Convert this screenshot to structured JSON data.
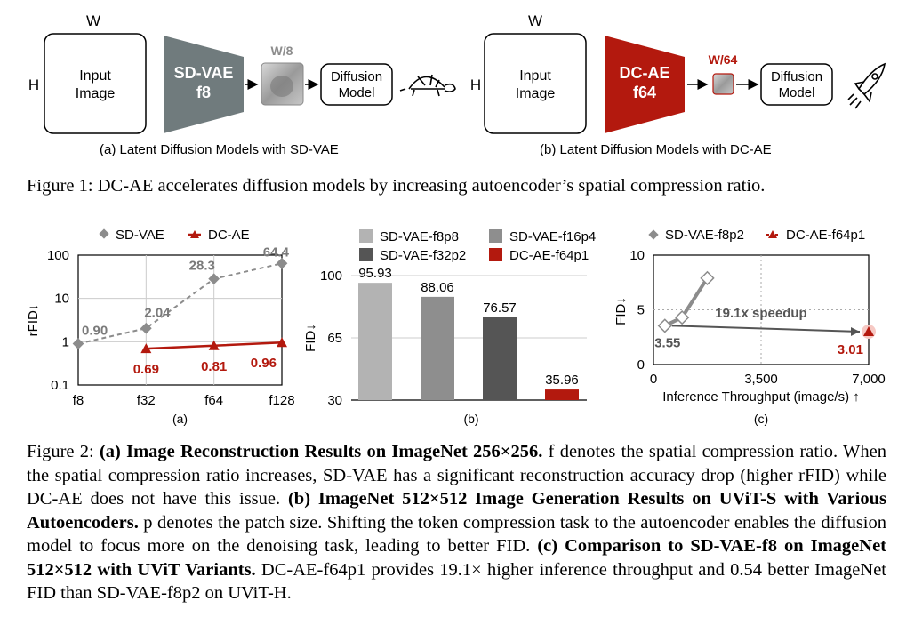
{
  "fig1": {
    "panel_a": {
      "width_label": "W",
      "height_label": "H",
      "input_label_line1": "Input",
      "input_label_line2": "Image",
      "encoder_line1": "SD-VAE",
      "encoder_line2": "f8",
      "latent_label": "W/8",
      "model_line1": "Diffusion",
      "model_line2": "Model",
      "caption": "(a) Latent Diffusion Models with SD-VAE",
      "icon": "turtle-icon",
      "encoder_color": "#707b7d"
    },
    "panel_b": {
      "width_label": "W",
      "height_label": "H",
      "input_label_line1": "Input",
      "input_label_line2": "Image",
      "encoder_line1": "DC-AE",
      "encoder_line2": "f64",
      "latent_label": "W/64",
      "model_line1": "Diffusion",
      "model_line2": "Model",
      "caption": "(b) Latent Diffusion Models with DC-AE",
      "icon": "rocket-icon",
      "encoder_color": "#b3190e"
    },
    "caption_label": "Figure 1:",
    "caption_text": "DC-AE accelerates diffusion models by increasing autoencoder’s spatial compression ratio."
  },
  "chart_data": [
    {
      "type": "line",
      "panel_label": "(a)",
      "ylabel": "rFID↓",
      "yscale": "log",
      "ylim": [
        0.1,
        100
      ],
      "yticks": [
        "0.1",
        "1",
        "10",
        "100"
      ],
      "categories": [
        "f8",
        "f32",
        "f64",
        "f128"
      ],
      "grid": true,
      "legend": "top",
      "series": [
        {
          "name": "SD-VAE",
          "values": [
            0.9,
            2.04,
            28.3,
            64.4
          ],
          "labels": [
            "0.90",
            "2.04",
            "28.3",
            "64.4"
          ],
          "color": "#8c8c8c"
        },
        {
          "name": "DC-AE",
          "values": [
            null,
            0.69,
            0.81,
            0.96
          ],
          "labels": [
            "",
            "0.69",
            "0.81",
            "0.96"
          ],
          "color": "#b3190e"
        }
      ]
    },
    {
      "type": "bar",
      "panel_label": "(b)",
      "ylabel": "FID↓",
      "ylim": [
        30,
        100
      ],
      "yticks": [
        "30",
        "65",
        "100"
      ],
      "legend": "top",
      "categories": [
        "SD-VAE-f8p8",
        "SD-VAE-f16p4",
        "SD-VAE-f32p2",
        "DC-AE-f64p1"
      ],
      "values": [
        95.93,
        88.06,
        76.57,
        35.96
      ],
      "labels": [
        "95.93",
        "88.06",
        "76.57",
        "35.96"
      ],
      "colors": [
        "#b3b3b3",
        "#8e8e8e",
        "#555555",
        "#b3190e"
      ]
    },
    {
      "type": "scatter",
      "panel_label": "(c)",
      "ylabel": "FID↓",
      "xlabel": "Inference Throughput (image/s) ↑",
      "xlim": [
        0,
        7000
      ],
      "ylim": [
        0,
        10
      ],
      "xticks": [
        "0",
        "3,500",
        "7,000"
      ],
      "yticks": [
        "0",
        "5",
        "10"
      ],
      "legend": "top",
      "annotation": "19.1x speedup",
      "series": [
        {
          "name": "SD-VAE-f8p2",
          "points": [
            [
              370,
              3.55
            ],
            [
              930,
              4.3
            ],
            [
              1750,
              7.9
            ]
          ],
          "end_label": "3.55",
          "color": "#8c8c8c"
        },
        {
          "name": "DC-AE-f64p1",
          "points": [
            [
              7000,
              3.01
            ]
          ],
          "end_label": "3.01",
          "color": "#b3190e"
        }
      ]
    }
  ],
  "fig2": {
    "caption_label": "Figure 2:",
    "a_bold": "(a) Image Reconstruction Results on ImageNet 256×256.",
    "a_text": " f denotes the spatial compression ratio. When the spatial compression ratio increases, SD-VAE has a significant reconstruction accuracy drop (higher rFID) while DC-AE does not have this issue. ",
    "b_bold": "(b) ImageNet 512×512 Image Generation Results on UViT-S with Various Autoencoders.",
    "b_text": " p denotes the patch size. Shifting the token compression task to the autoencoder enables the diffusion model to focus more on the denoising task, leading to better FID. ",
    "c_bold": "(c) Comparison to SD-VAE-f8 on ImageNet 512×512 with UViT Variants.",
    "c_text": " DC-AE-f64p1 provides 19.1× higher inference throughput and 0.54 better ImageNet FID than SD-VAE-f8p2 on UViT-H."
  }
}
